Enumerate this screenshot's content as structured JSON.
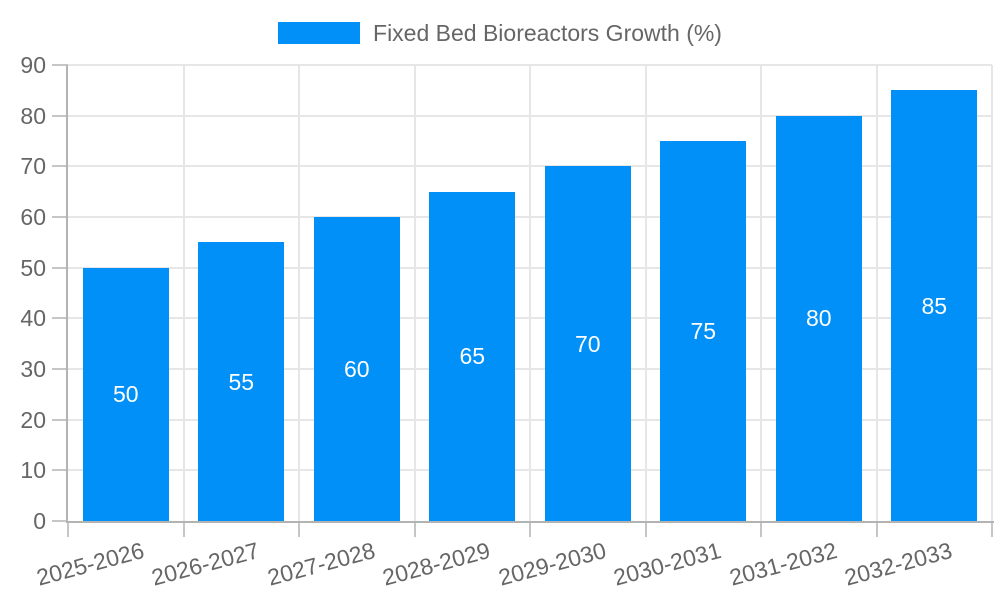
{
  "legend": {
    "label": "Fixed Bed Bioreactors Growth (%)"
  },
  "colors": {
    "bar": "#0090f8",
    "grid": "#e6e6e6",
    "axis_border": "#b3b3b3",
    "tick_mark": "#c6c6c6",
    "text": "#666666",
    "bar_label": "#ffffff",
    "background": "#ffffff"
  },
  "chart_data": {
    "type": "bar",
    "title": "",
    "xlabel": "",
    "ylabel": "",
    "categories": [
      "2025-2026",
      "2026-2027",
      "2027-2028",
      "2028-2029",
      "2029-2030",
      "2030-2031",
      "2031-2032",
      "2032-2033"
    ],
    "values": [
      50,
      55,
      60,
      65,
      70,
      75,
      80,
      85
    ],
    "series_name": "Fixed Bed Bioreactors Growth (%)",
    "ylim": [
      0,
      90
    ],
    "yticks": [
      0,
      10,
      20,
      30,
      40,
      50,
      60,
      70,
      80,
      90
    ],
    "grid": true,
    "legend_position": "top",
    "value_labels_inside_bars": true,
    "x_tick_rotation_deg": -15
  }
}
